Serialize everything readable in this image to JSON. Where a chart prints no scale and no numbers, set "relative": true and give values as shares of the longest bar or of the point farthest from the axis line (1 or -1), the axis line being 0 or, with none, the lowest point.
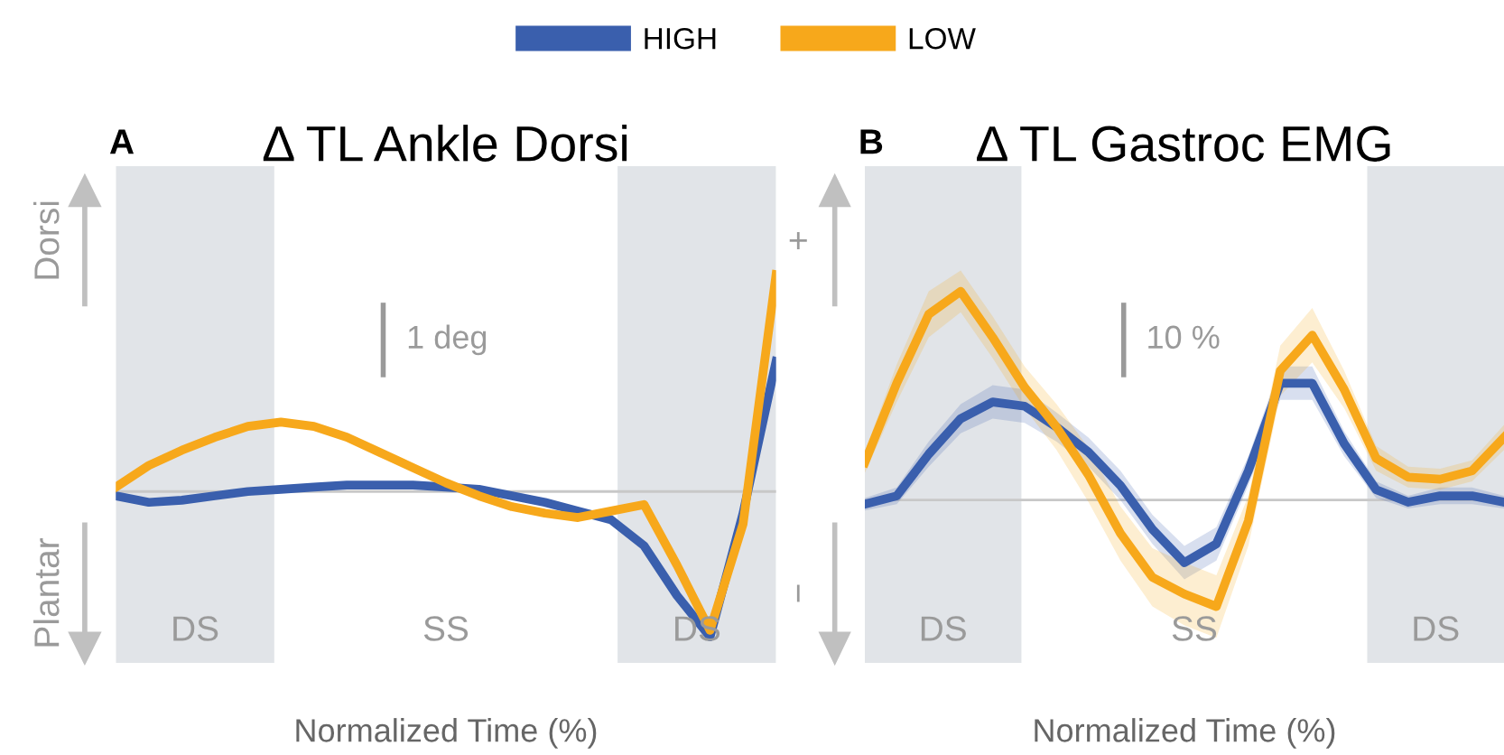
{
  "chart_data": [
    {
      "type": "line",
      "title": "Δ TL Ankle Dorsi",
      "xlabel": "Normalized Time (%)",
      "relative": true,
      "legend": "top",
      "tick_labels": false,
      "annotations": [
        "A",
        "Dorsi",
        "Plantar",
        "1 deg",
        "DS",
        "SS",
        "DS"
      ],
      "categories": [
        null,
        null,
        null,
        null,
        null,
        null,
        null,
        null,
        null,
        null,
        null,
        null,
        null,
        null,
        null,
        null,
        null,
        null,
        null,
        null,
        null
      ],
      "series": [
        {
          "name": "HIGH",
          "color": "#3a5fad",
          "values": [
            -0.02,
            -0.05,
            -0.04,
            -0.02,
            0.0,
            0.01,
            0.02,
            0.03,
            0.03,
            0.03,
            0.02,
            0.01,
            -0.02,
            -0.05,
            -0.09,
            -0.13,
            -0.25,
            -0.48,
            -0.67,
            -0.1,
            0.6
          ]
        },
        {
          "name": "LOW",
          "color": "#f7a81b",
          "values": [
            0.02,
            0.12,
            0.19,
            0.25,
            0.3,
            0.32,
            0.3,
            0.25,
            0.18,
            0.11,
            0.04,
            -0.02,
            -0.07,
            -0.1,
            -0.12,
            -0.09,
            -0.06,
            -0.34,
            -0.64,
            -0.15,
            1.0
          ]
        }
      ]
    },
    {
      "type": "line",
      "title": "Δ TL Gastroc EMG",
      "xlabel": "Normalized Time (%)",
      "relative": true,
      "tick_labels": false,
      "annotations": [
        "B",
        "+",
        "−",
        "10 %",
        "DS",
        "SS",
        "DS"
      ],
      "categories": [
        null,
        null,
        null,
        null,
        null,
        null,
        null,
        null,
        null,
        null,
        null,
        null,
        null,
        null,
        null,
        null,
        null,
        null,
        null,
        null,
        null
      ],
      "series": [
        {
          "color": "#3a5fad",
          "values": [
            -0.02,
            0.02,
            0.22,
            0.39,
            0.47,
            0.45,
            0.35,
            0.23,
            0.07,
            -0.14,
            -0.3,
            -0.21,
            0.14,
            0.56,
            0.56,
            0.27,
            0.05,
            -0.01,
            0.02,
            0.02,
            -0.01
          ],
          "lower": [
            -0.05,
            -0.02,
            0.16,
            0.32,
            0.39,
            0.37,
            0.28,
            0.16,
            0.0,
            -0.21,
            -0.38,
            -0.29,
            0.07,
            0.48,
            0.48,
            0.21,
            0.01,
            -0.04,
            -0.02,
            -0.02,
            -0.04
          ],
          "upper": [
            0.01,
            0.06,
            0.28,
            0.46,
            0.55,
            0.53,
            0.42,
            0.3,
            0.14,
            -0.07,
            -0.22,
            -0.13,
            0.21,
            0.64,
            0.64,
            0.33,
            0.09,
            0.02,
            0.06,
            0.06,
            0.02
          ]
        },
        {
          "color": "#f7a81b",
          "values": [
            0.18,
            0.56,
            0.89,
            1.0,
            0.78,
            0.54,
            0.35,
            0.12,
            -0.16,
            -0.37,
            -0.45,
            -0.51,
            -0.1,
            0.62,
            0.79,
            0.53,
            0.2,
            0.11,
            0.1,
            0.14,
            0.3
          ],
          "lower": [
            0.13,
            0.47,
            0.78,
            0.9,
            0.68,
            0.44,
            0.24,
            -0.01,
            -0.29,
            -0.51,
            -0.6,
            -0.66,
            -0.22,
            0.5,
            0.66,
            0.44,
            0.14,
            0.06,
            0.05,
            0.09,
            0.24
          ],
          "upper": [
            0.23,
            0.65,
            1.0,
            1.1,
            0.88,
            0.64,
            0.46,
            0.25,
            -0.03,
            -0.23,
            -0.3,
            -0.36,
            0.02,
            0.74,
            0.92,
            0.62,
            0.26,
            0.16,
            0.15,
            0.19,
            0.36
          ]
        }
      ]
    }
  ]
}
